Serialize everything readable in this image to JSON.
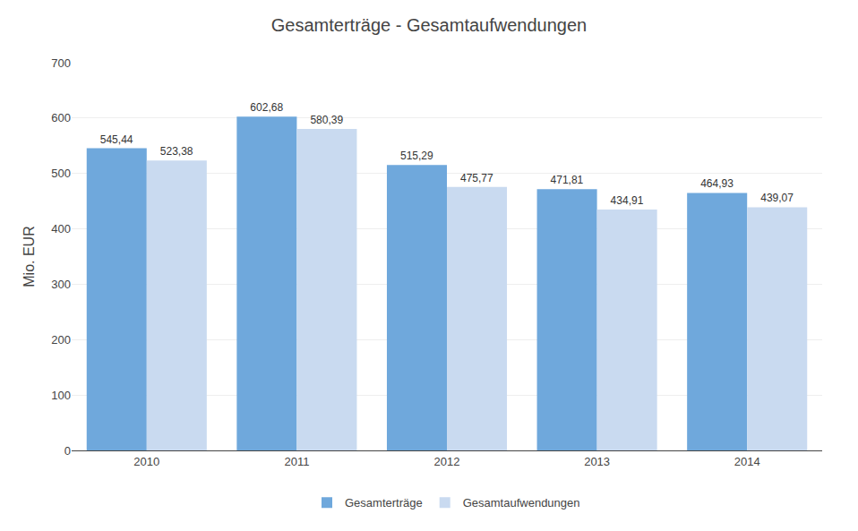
{
  "chart_data": {
    "type": "bar",
    "title": "Gesamterträge - Gesamtaufwendungen",
    "ylabel": "Mio. EUR",
    "categories": [
      "2010",
      "2011",
      "2012",
      "2013",
      "2014"
    ],
    "series": [
      {
        "name": "Gesamterträge",
        "color": "#6FA8DC",
        "values": [
          545.44,
          602.68,
          515.29,
          471.81,
          464.93
        ],
        "value_labels": [
          "545,44",
          "602,68",
          "515,29",
          "471,81",
          "464,93"
        ]
      },
      {
        "name": "Gesamtaufwendungen",
        "color": "#C9DAF0",
        "values": [
          523.38,
          580.39,
          475.77,
          434.91,
          439.07
        ],
        "value_labels": [
          "523,38",
          "580,39",
          "475,77",
          "434,91",
          "439,07"
        ]
      }
    ],
    "ylim": [
      0,
      700
    ],
    "yticks": [
      0,
      100,
      200,
      300,
      400,
      500,
      600,
      700
    ],
    "grid": true,
    "legend": "bottom",
    "data_labels": true
  }
}
